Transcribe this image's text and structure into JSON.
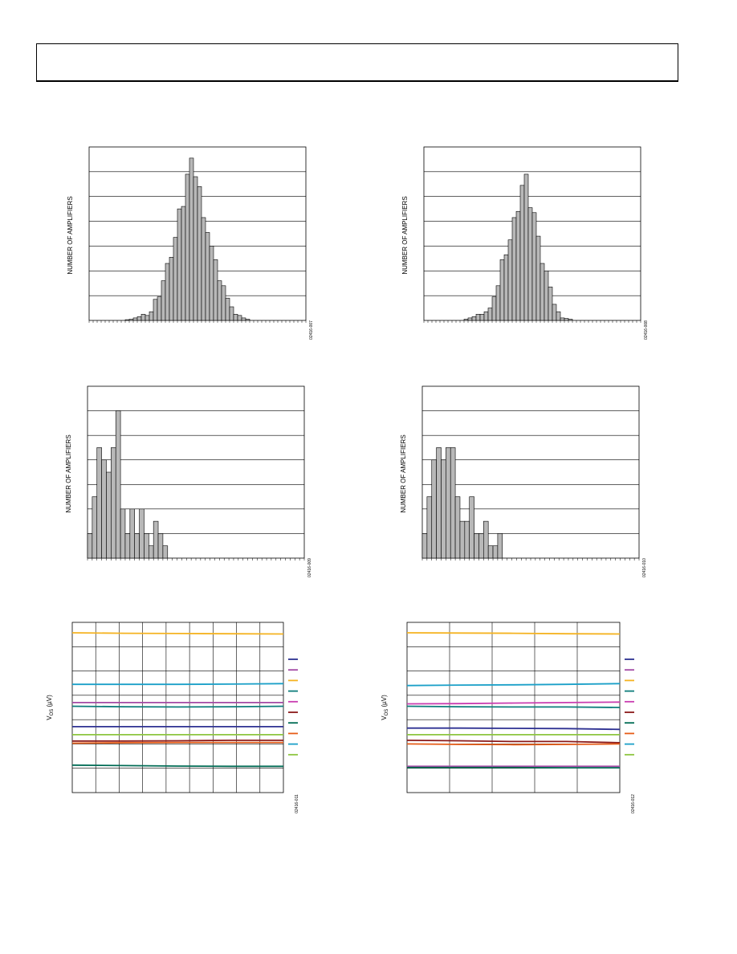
{
  "page": {
    "header_text": ""
  },
  "chart_data": [
    {
      "type": "bar",
      "id": "hist-1",
      "ylabel": "NUMBER OF AMPLIFIERS",
      "figure_id": "02416-007",
      "bin_count": 54,
      "ylim": [
        0,
        7
      ],
      "values": [
        0,
        0,
        0,
        0,
        0,
        0,
        0,
        0,
        0,
        0.03,
        0.05,
        0.1,
        0.15,
        0.25,
        0.2,
        0.35,
        0.85,
        0.95,
        1.6,
        2.3,
        2.55,
        3.35,
        4.5,
        4.6,
        5.9,
        6.55,
        5.8,
        5.4,
        4.15,
        3.55,
        3.0,
        2.45,
        1.6,
        1.4,
        0.9,
        0.55,
        0.25,
        0.2,
        0.1,
        0.05,
        0,
        0,
        0,
        0,
        0,
        0,
        0,
        0,
        0,
        0,
        0,
        0,
        0,
        0
      ]
    },
    {
      "type": "bar",
      "id": "hist-2",
      "ylabel": "NUMBER OF AMPLIFIERS",
      "figure_id": "02416-008",
      "bin_count": 54,
      "ylim": [
        0,
        7
      ],
      "values": [
        0,
        0,
        0,
        0,
        0,
        0,
        0,
        0,
        0,
        0,
        0.05,
        0.1,
        0.15,
        0.25,
        0.25,
        0.35,
        0.5,
        0.95,
        1.4,
        2.45,
        2.65,
        3.25,
        4.15,
        4.4,
        5.45,
        5.9,
        4.55,
        4.35,
        3.4,
        2.3,
        2.0,
        1.35,
        0.65,
        0.35,
        0.1,
        0.08,
        0.05,
        0,
        0,
        0,
        0,
        0,
        0,
        0,
        0,
        0,
        0,
        0,
        0,
        0,
        0,
        0,
        0,
        0
      ]
    },
    {
      "type": "bar",
      "id": "hist-3",
      "ylabel": "NUMBER OF AMPLIFIERS",
      "figure_id": "02416-009",
      "bin_count": 46,
      "ylim": [
        0,
        7
      ],
      "values": [
        1,
        2.5,
        4.5,
        4,
        3.5,
        4.5,
        6,
        2,
        1,
        2,
        1,
        2,
        1,
        0.5,
        1.5,
        1,
        0.5,
        0,
        0,
        0,
        0,
        0,
        0,
        0,
        0,
        0,
        0,
        0,
        0,
        0,
        0,
        0,
        0,
        0,
        0,
        0,
        0,
        0,
        0,
        0,
        0,
        0,
        0,
        0,
        0,
        0
      ]
    },
    {
      "type": "bar",
      "id": "hist-4",
      "ylabel": "NUMBER OF AMPLIFIERS",
      "figure_id": "02416-010",
      "bin_count": 46,
      "ylim": [
        0,
        7
      ],
      "values": [
        1,
        2.5,
        4,
        4.5,
        4,
        4.5,
        4.5,
        2.5,
        1.5,
        1.5,
        2.5,
        1,
        1,
        1.5,
        0.5,
        0.5,
        1,
        0,
        0,
        0,
        0,
        0,
        0,
        0,
        0,
        0,
        0,
        0,
        0,
        0,
        0,
        0,
        0,
        0,
        0,
        0,
        0,
        0,
        0,
        0,
        0,
        0,
        0,
        0,
        0,
        0
      ]
    },
    {
      "type": "line",
      "id": "drift-1",
      "ylabel_main": "V",
      "ylabel_sub": "OS",
      "ylabel_unit": " (µV)",
      "figure_id": "02416-011",
      "xlim": [
        0,
        9
      ],
      "ylim": [
        0,
        7
      ],
      "x_gridlines": 9,
      "y_gridlines": 7,
      "series": [
        {
          "color": "#F5B321",
          "values": [
            6.57,
            6.55,
            6.54,
            6.53,
            6.52
          ]
        },
        {
          "color": "#1BA0C8",
          "values": [
            4.45,
            4.45,
            4.45,
            4.46,
            4.48
          ]
        },
        {
          "color": "#A349A4",
          "values": [
            3.7,
            3.7,
            3.7,
            3.7,
            3.7
          ]
        },
        {
          "color": "#0E7C7B",
          "values": [
            3.55,
            3.53,
            3.52,
            3.53,
            3.55
          ]
        },
        {
          "color": "#2E3192",
          "values": [
            2.71,
            2.71,
            2.71,
            2.71,
            2.71
          ]
        },
        {
          "color": "#8DC63F",
          "values": [
            2.38,
            2.38,
            2.38,
            2.38,
            2.38
          ]
        },
        {
          "color": "#E65C17",
          "values": [
            2.03,
            2.05,
            2.06,
            2.06,
            2.06
          ]
        },
        {
          "color": "#8B1A1A",
          "values": [
            2.12,
            2.12,
            2.13,
            2.15,
            2.15
          ]
        },
        {
          "color": "#006B54",
          "values": [
            1.13,
            1.11,
            1.09,
            1.08,
            1.08
          ]
        }
      ],
      "legend_colors": [
        "#2E3192",
        "#A349A4",
        "#F5B321",
        "#0E7C7B",
        "#C93DB0",
        "#8B1A1A",
        "#006B54",
        "#E65C17",
        "#1BA0C8",
        "#8DC63F"
      ]
    },
    {
      "type": "line",
      "id": "drift-2",
      "ylabel_main": "V",
      "ylabel_sub": "OS",
      "ylabel_unit": " (µV)",
      "figure_id": "02416-012",
      "xlim": [
        0,
        5
      ],
      "ylim": [
        0,
        7
      ],
      "x_gridlines": 5,
      "y_gridlines": 7,
      "series": [
        {
          "color": "#F5B321",
          "values": [
            6.57,
            6.56,
            6.55,
            6.53,
            6.52
          ]
        },
        {
          "color": "#1BA0C8",
          "values": [
            4.4,
            4.42,
            4.43,
            4.45,
            4.48
          ]
        },
        {
          "color": "#C93DB0",
          "values": [
            3.65,
            3.66,
            3.68,
            3.7,
            3.72
          ]
        },
        {
          "color": "#0E7C7B",
          "values": [
            3.55,
            3.53,
            3.52,
            3.52,
            3.5
          ]
        },
        {
          "color": "#2E3192",
          "values": [
            2.65,
            2.65,
            2.64,
            2.63,
            2.6
          ]
        },
        {
          "color": "#8DC63F",
          "values": [
            2.38,
            2.38,
            2.38,
            2.38,
            2.38
          ]
        },
        {
          "color": "#8B1A1A",
          "values": [
            2.15,
            2.13,
            2.1,
            2.1,
            2.05
          ]
        },
        {
          "color": "#E65C17",
          "values": [
            2.0,
            1.98,
            1.97,
            1.98,
            2.0
          ]
        },
        {
          "color": "#A349A4",
          "values": [
            1.08,
            1.08,
            1.08,
            1.08,
            1.08
          ]
        },
        {
          "color": "#006B54",
          "values": [
            1.03,
            1.03,
            1.03,
            1.02,
            1.02
          ]
        }
      ],
      "legend_colors": [
        "#2E3192",
        "#A349A4",
        "#F5B321",
        "#0E7C7B",
        "#C93DB0",
        "#8B1A1A",
        "#006B54",
        "#E65C17",
        "#1BA0C8",
        "#8DC63F"
      ]
    }
  ]
}
